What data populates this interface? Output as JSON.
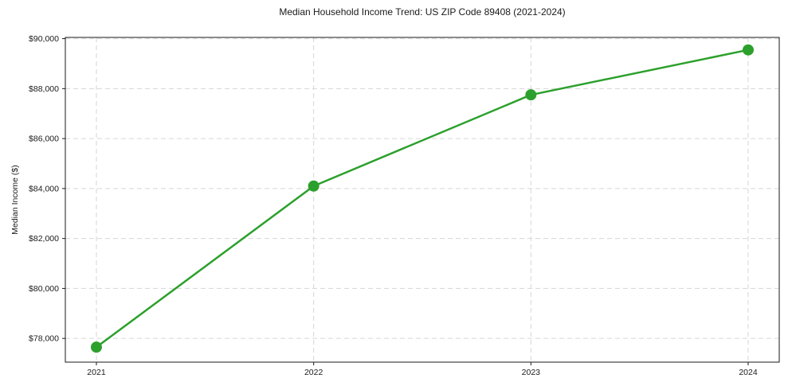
{
  "chart_data": {
    "type": "line",
    "title": "Median Household Income Trend: US ZIP Code 89408 (2021-2024)",
    "xlabel": "",
    "ylabel": "Median Income ($)",
    "x": [
      2021,
      2022,
      2023,
      2024
    ],
    "values": [
      77650,
      84100,
      87750,
      89550
    ],
    "xticks": [
      2021,
      2022,
      2023,
      2024
    ],
    "xtick_labels": [
      "2021",
      "2022",
      "2023",
      "2024"
    ],
    "yticks": [
      78000,
      80000,
      82000,
      84000,
      86000,
      88000,
      90000
    ],
    "ytick_labels": [
      "$78,000",
      "$80,000",
      "$82,000",
      "$84,000",
      "$86,000",
      "$88,000",
      "$90,000"
    ],
    "xlim": [
      2020.857,
      2024.143
    ],
    "ylim": [
      77050,
      90050
    ],
    "grid": true,
    "grid_style": "dashed",
    "legend": null,
    "style": {
      "line_color": "#2ca02c",
      "marker_color": "#2ca02c",
      "marker": "circle",
      "grid_color": "#d6d6d6",
      "spine_color": "#1a1a1a",
      "text_color": "#1a1a1a",
      "background": "#ffffff"
    }
  }
}
